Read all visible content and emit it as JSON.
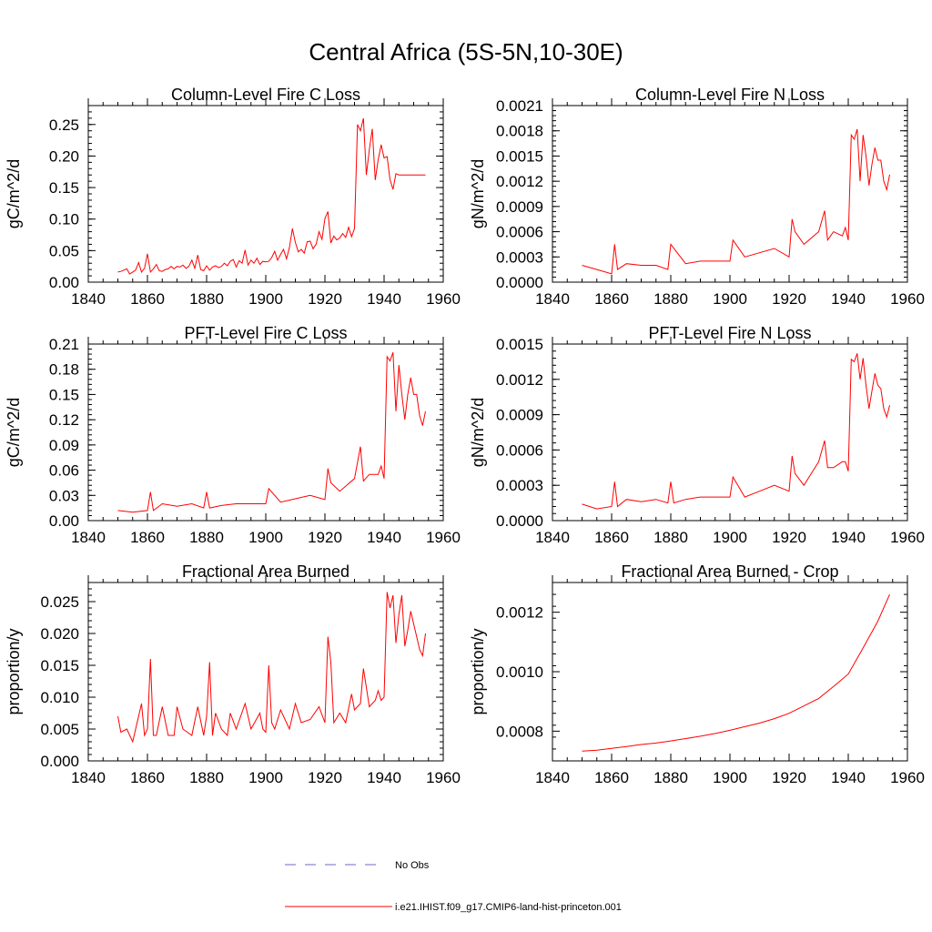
{
  "figure_title": "Central Africa (5S-5N,10-30E)",
  "line_color": "#ff0000",
  "legend": {
    "entries": [
      {
        "label": "No Obs",
        "style": "dashed",
        "color": "#6a6ac8"
      },
      {
        "label": "i.e21.IHIST.f09_g17.CMIP6-land-hist-princeton.001",
        "style": "solid",
        "color": "#ff0000"
      }
    ]
  },
  "chart_data": [
    {
      "type": "line",
      "title": "Column-Level Fire C Loss",
      "ylabel": "gC/m^2/d",
      "xlim": [
        1840,
        1960
      ],
      "ylim": [
        0,
        0.28
      ],
      "xticks": [
        1840,
        1860,
        1880,
        1900,
        1920,
        1940,
        1960
      ],
      "xtick_labels": [
        "1840",
        "1860",
        "1880",
        "1900",
        "1920",
        "1940",
        "1960"
      ],
      "yticks": [
        0,
        0.05,
        0.1,
        0.15,
        0.2,
        0.25
      ],
      "ytick_labels": [
        "0.00",
        "0.05",
        "0.10",
        "0.15",
        "0.20",
        "0.25"
      ],
      "series": [
        {
          "name": "i.e21.IHIST.f09_g17.CMIP6-land-hist-princeton.001",
          "x": [
            1850,
            1851,
            1852,
            1853,
            1854,
            1855,
            1856,
            1857,
            1858,
            1859,
            1860,
            1861,
            1862,
            1863,
            1864,
            1865,
            1866,
            1867,
            1868,
            1869,
            1870,
            1871,
            1872,
            1873,
            1874,
            1875,
            1876,
            1877,
            1878,
            1879,
            1880,
            1881,
            1882,
            1883,
            1884,
            1885,
            1886,
            1887,
            1888,
            1889,
            1890,
            1891,
            1892,
            1893,
            1894,
            1895,
            1896,
            1897,
            1898,
            1899,
            1900,
            1901,
            1902,
            1903,
            1904,
            1905,
            1906,
            1907,
            1908,
            1909,
            1910,
            1911,
            1912,
            1913,
            1914,
            1915,
            1916,
            1917,
            1918,
            1919,
            1920,
            1921,
            1922,
            1923,
            1924,
            1925,
            1926,
            1927,
            1928,
            1929,
            1930,
            1931,
            1932,
            1933,
            1934,
            1935,
            1936,
            1937,
            1938,
            1939,
            1940,
            1941,
            1942,
            1943,
            1944,
            1945,
            1946,
            1947,
            1948,
            1949,
            1950,
            1951,
            1952,
            1953,
            1954
          ],
          "values": [
            0.016,
            0.017,
            0.019,
            0.021,
            0.013,
            0.016,
            0.019,
            0.031,
            0.016,
            0.022,
            0.045,
            0.016,
            0.021,
            0.028,
            0.018,
            0.017,
            0.02,
            0.021,
            0.025,
            0.021,
            0.025,
            0.024,
            0.027,
            0.022,
            0.025,
            0.035,
            0.022,
            0.043,
            0.02,
            0.018,
            0.026,
            0.019,
            0.024,
            0.026,
            0.023,
            0.025,
            0.03,
            0.026,
            0.033,
            0.036,
            0.024,
            0.034,
            0.03,
            0.051,
            0.027,
            0.035,
            0.03,
            0.038,
            0.028,
            0.033,
            0.032,
            0.033,
            0.039,
            0.049,
            0.035,
            0.044,
            0.052,
            0.037,
            0.055,
            0.085,
            0.063,
            0.048,
            0.052,
            0.046,
            0.064,
            0.065,
            0.053,
            0.06,
            0.08,
            0.068,
            0.101,
            0.112,
            0.062,
            0.073,
            0.067,
            0.07,
            0.077,
            0.071,
            0.087,
            0.072,
            0.085,
            0.25,
            0.24,
            0.26,
            0.17,
            0.21,
            0.243,
            0.162,
            0.194,
            0.218,
            0.197,
            0.199,
            0.163,
            0.147,
            0.172,
            0.17,
            0.17,
            0.17,
            0.17,
            0.17,
            0.17,
            0.17,
            0.17,
            0.17,
            0.17
          ]
        }
      ]
    },
    {
      "type": "line",
      "title": "Column-Level Fire N Loss",
      "ylabel": "gN/m^2/d",
      "xlim": [
        1840,
        1960
      ],
      "ylim": [
        0,
        0.0021
      ],
      "xticks": [
        1840,
        1860,
        1880,
        1900,
        1920,
        1940,
        1960
      ],
      "xtick_labels": [
        "1840",
        "1860",
        "1880",
        "1900",
        "1920",
        "1940",
        "1960"
      ],
      "yticks": [
        0,
        0.0003,
        0.0006,
        0.0009,
        0.0012,
        0.0015,
        0.0018,
        0.0021
      ],
      "ytick_labels": [
        "0.0000",
        "0.0003",
        "0.0006",
        "0.0009",
        "0.0012",
        "0.0015",
        "0.0018",
        "0.0021"
      ],
      "series": [
        {
          "name": "i.e21.IHIST.f09_g17.CMIP6-land-hist-princeton.001",
          "x": [
            1850,
            1855,
            1860,
            1861,
            1862,
            1865,
            1870,
            1875,
            1879,
            1880,
            1885,
            1890,
            1900,
            1901,
            1905,
            1910,
            1915,
            1920,
            1921,
            1922,
            1925,
            1930,
            1932,
            1933,
            1935,
            1938,
            1939,
            1940,
            1941,
            1942,
            1943,
            1944,
            1945,
            1946,
            1947,
            1948,
            1949,
            1950,
            1951,
            1952,
            1953,
            1954
          ],
          "values": [
            0.0002,
            0.00015,
            0.0001,
            0.00045,
            0.00015,
            0.00022,
            0.0002,
            0.0002,
            0.00015,
            0.00045,
            0.00022,
            0.00025,
            0.00025,
            0.0005,
            0.0003,
            0.00035,
            0.0004,
            0.0003,
            0.00075,
            0.0006,
            0.00045,
            0.0006,
            0.00085,
            0.0005,
            0.0006,
            0.00055,
            0.00065,
            0.0005,
            0.00175,
            0.0017,
            0.00182,
            0.0012,
            0.00175,
            0.0015,
            0.00115,
            0.0014,
            0.0016,
            0.00145,
            0.00145,
            0.0012,
            0.0011,
            0.00128
          ]
        }
      ]
    },
    {
      "type": "line",
      "title": "PFT-Level Fire C Loss",
      "ylabel": "gC/m^2/d",
      "xlim": [
        1840,
        1960
      ],
      "ylim": [
        0,
        0.21
      ],
      "xticks": [
        1840,
        1860,
        1880,
        1900,
        1920,
        1940,
        1960
      ],
      "xtick_labels": [
        "1840",
        "1860",
        "1880",
        "1900",
        "1920",
        "1940",
        "1960"
      ],
      "yticks": [
        0,
        0.03,
        0.06,
        0.09,
        0.12,
        0.15,
        0.18,
        0.21
      ],
      "ytick_labels": [
        "0.00",
        "0.03",
        "0.06",
        "0.09",
        "0.12",
        "0.15",
        "0.18",
        "0.21"
      ],
      "series": [
        {
          "name": "i.e21.IHIST.f09_g17.CMIP6-land-hist-princeton.001",
          "x": [
            1850,
            1855,
            1860,
            1861,
            1862,
            1865,
            1870,
            1875,
            1879,
            1880,
            1881,
            1885,
            1890,
            1900,
            1901,
            1905,
            1910,
            1915,
            1920,
            1921,
            1922,
            1925,
            1930,
            1932,
            1933,
            1935,
            1938,
            1939,
            1940,
            1941,
            1942,
            1943,
            1944,
            1945,
            1946,
            1947,
            1948,
            1949,
            1950,
            1951,
            1952,
            1953,
            1954
          ],
          "values": [
            0.012,
            0.01,
            0.012,
            0.034,
            0.012,
            0.02,
            0.017,
            0.02,
            0.015,
            0.034,
            0.015,
            0.018,
            0.02,
            0.02,
            0.038,
            0.022,
            0.026,
            0.03,
            0.025,
            0.062,
            0.045,
            0.035,
            0.05,
            0.088,
            0.047,
            0.055,
            0.055,
            0.065,
            0.05,
            0.195,
            0.19,
            0.2,
            0.13,
            0.185,
            0.15,
            0.12,
            0.15,
            0.17,
            0.15,
            0.15,
            0.125,
            0.113,
            0.13
          ]
        }
      ]
    },
    {
      "type": "line",
      "title": "PFT-Level Fire N Loss",
      "ylabel": "gN/m^2/d",
      "xlim": [
        1840,
        1960
      ],
      "ylim": [
        0,
        0.0015
      ],
      "xticks": [
        1840,
        1860,
        1880,
        1900,
        1920,
        1940,
        1960
      ],
      "xtick_labels": [
        "1840",
        "1860",
        "1880",
        "1900",
        "1920",
        "1940",
        "1960"
      ],
      "yticks": [
        0,
        0.0003,
        0.0006,
        0.0009,
        0.0012,
        0.0015
      ],
      "ytick_labels": [
        "0.0000",
        "0.0003",
        "0.0006",
        "0.0009",
        "0.0012",
        "0.0015"
      ],
      "series": [
        {
          "name": "i.e21.IHIST.f09_g17.CMIP6-land-hist-princeton.001",
          "x": [
            1850,
            1855,
            1860,
            1861,
            1862,
            1865,
            1870,
            1875,
            1879,
            1880,
            1881,
            1885,
            1890,
            1900,
            1901,
            1905,
            1910,
            1915,
            1920,
            1921,
            1922,
            1925,
            1930,
            1932,
            1933,
            1935,
            1938,
            1939,
            1940,
            1941,
            1942,
            1943,
            1944,
            1945,
            1946,
            1947,
            1948,
            1949,
            1950,
            1951,
            1952,
            1953,
            1954
          ],
          "values": [
            0.00014,
            0.0001,
            0.00012,
            0.00033,
            0.00012,
            0.00018,
            0.00016,
            0.00018,
            0.00015,
            0.00033,
            0.00015,
            0.00018,
            0.0002,
            0.0002,
            0.00037,
            0.0002,
            0.00025,
            0.0003,
            0.00025,
            0.00055,
            0.0004,
            0.0003,
            0.0005,
            0.00068,
            0.00045,
            0.00045,
            0.0005,
            0.0005,
            0.00042,
            0.00137,
            0.00135,
            0.00142,
            0.0012,
            0.00138,
            0.00115,
            0.00095,
            0.0011,
            0.00125,
            0.00115,
            0.00112,
            0.00095,
            0.00088,
            0.00098
          ]
        }
      ]
    },
    {
      "type": "line",
      "title": "Fractional Area Burned",
      "ylabel": "proportion/y",
      "xlim": [
        1840,
        1960
      ],
      "ylim": [
        0,
        0.028
      ],
      "xticks": [
        1840,
        1860,
        1880,
        1900,
        1920,
        1940,
        1960
      ],
      "xtick_labels": [
        "1840",
        "1860",
        "1880",
        "1900",
        "1920",
        "1940",
        "1960"
      ],
      "yticks": [
        0,
        0.005,
        0.01,
        0.015,
        0.02,
        0.025
      ],
      "ytick_labels": [
        "0.000",
        "0.005",
        "0.010",
        "0.015",
        "0.020",
        "0.025"
      ],
      "series": [
        {
          "name": "i.e21.IHIST.f09_g17.CMIP6-land-hist-princeton.001",
          "x": [
            1850,
            1851,
            1853,
            1855,
            1858,
            1859,
            1860,
            1861,
            1862,
            1863,
            1865,
            1867,
            1869,
            1870,
            1872,
            1875,
            1877,
            1879,
            1880,
            1881,
            1882,
            1883,
            1885,
            1887,
            1888,
            1890,
            1893,
            1895,
            1898,
            1899,
            1900,
            1901,
            1902,
            1903,
            1905,
            1908,
            1910,
            1912,
            1915,
            1918,
            1920,
            1921,
            1922,
            1923,
            1925,
            1927,
            1929,
            1930,
            1932,
            1933,
            1935,
            1937,
            1938,
            1939,
            1940,
            1941,
            1942,
            1943,
            1944,
            1945,
            1946,
            1947,
            1948,
            1949,
            1950,
            1951,
            1952,
            1953,
            1954
          ],
          "values": [
            0.007,
            0.0045,
            0.005,
            0.003,
            0.009,
            0.004,
            0.005,
            0.016,
            0.004,
            0.004,
            0.0085,
            0.004,
            0.004,
            0.0085,
            0.005,
            0.004,
            0.0085,
            0.004,
            0.007,
            0.0155,
            0.004,
            0.0075,
            0.005,
            0.004,
            0.0075,
            0.005,
            0.009,
            0.005,
            0.0075,
            0.005,
            0.0045,
            0.015,
            0.006,
            0.005,
            0.008,
            0.005,
            0.009,
            0.006,
            0.0065,
            0.0085,
            0.006,
            0.0195,
            0.0155,
            0.006,
            0.0075,
            0.006,
            0.0105,
            0.008,
            0.009,
            0.0145,
            0.0085,
            0.0095,
            0.011,
            0.0095,
            0.01,
            0.0265,
            0.024,
            0.026,
            0.0185,
            0.023,
            0.026,
            0.018,
            0.0205,
            0.0235,
            0.0215,
            0.0195,
            0.0175,
            0.0165,
            0.02
          ]
        }
      ]
    },
    {
      "type": "line",
      "title": "Fractional Area Burned - Crop",
      "ylabel": "proportion/y",
      "xlim": [
        1840,
        1960
      ],
      "ylim": [
        0.0007,
        0.0013
      ],
      "xticks": [
        1840,
        1860,
        1880,
        1900,
        1920,
        1940,
        1960
      ],
      "xtick_labels": [
        "1840",
        "1860",
        "1880",
        "1900",
        "1920",
        "1940",
        "1960"
      ],
      "yticks": [
        0.0008,
        0.001,
        0.0012
      ],
      "ytick_labels": [
        "0.0008",
        "0.0010",
        "0.0012"
      ],
      "series": [
        {
          "name": "i.e21.IHIST.f09_g17.CMIP6-land-hist-princeton.001",
          "x": [
            1850,
            1855,
            1860,
            1865,
            1870,
            1875,
            1880,
            1885,
            1890,
            1895,
            1900,
            1905,
            1910,
            1915,
            1920,
            1925,
            1930,
            1935,
            1940,
            1945,
            1950,
            1954
          ],
          "values": [
            0.000733,
            0.000736,
            0.000742,
            0.000748,
            0.000755,
            0.00076,
            0.000767,
            0.000775,
            0.000783,
            0.000792,
            0.000803,
            0.000815,
            0.000827,
            0.000842,
            0.00086,
            0.000885,
            0.00091,
            0.00095,
            0.000992,
            0.00108,
            0.00117,
            0.00126
          ]
        }
      ]
    }
  ]
}
